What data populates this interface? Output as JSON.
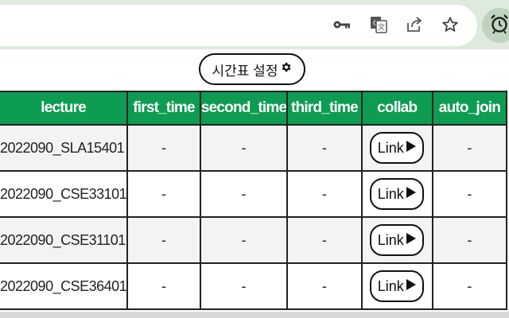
{
  "toolbar": {
    "icons": [
      "key-icon",
      "translate-icon",
      "share-icon",
      "star-icon",
      "alarm-clock-icon"
    ]
  },
  "settings_button": {
    "label": "시간표 설정",
    "icon": "gear-icon"
  },
  "table": {
    "headers": [
      "lecture",
      "first_time",
      "second_time",
      "third_time",
      "collab",
      "auto_join"
    ],
    "rows": [
      {
        "lecture": "2022090_SLA15401",
        "first_time": "-",
        "second_time": "-",
        "third_time": "-",
        "collab": "Link",
        "auto_join": "-"
      },
      {
        "lecture": "2022090_CSE33101",
        "first_time": "-",
        "second_time": "-",
        "third_time": "-",
        "collab": "Link",
        "auto_join": "-"
      },
      {
        "lecture": "2022090_CSE31101",
        "first_time": "-",
        "second_time": "-",
        "third_time": "-",
        "collab": "Link",
        "auto_join": "-"
      },
      {
        "lecture": "2022090_CSE36401",
        "first_time": "-",
        "second_time": "-",
        "third_time": "-",
        "collab": "Link",
        "auto_join": "-"
      }
    ]
  },
  "colors": {
    "header_bg": "#0d9c52",
    "header_text": "#ffffff",
    "toolbar_bg": "#dfeadf"
  }
}
